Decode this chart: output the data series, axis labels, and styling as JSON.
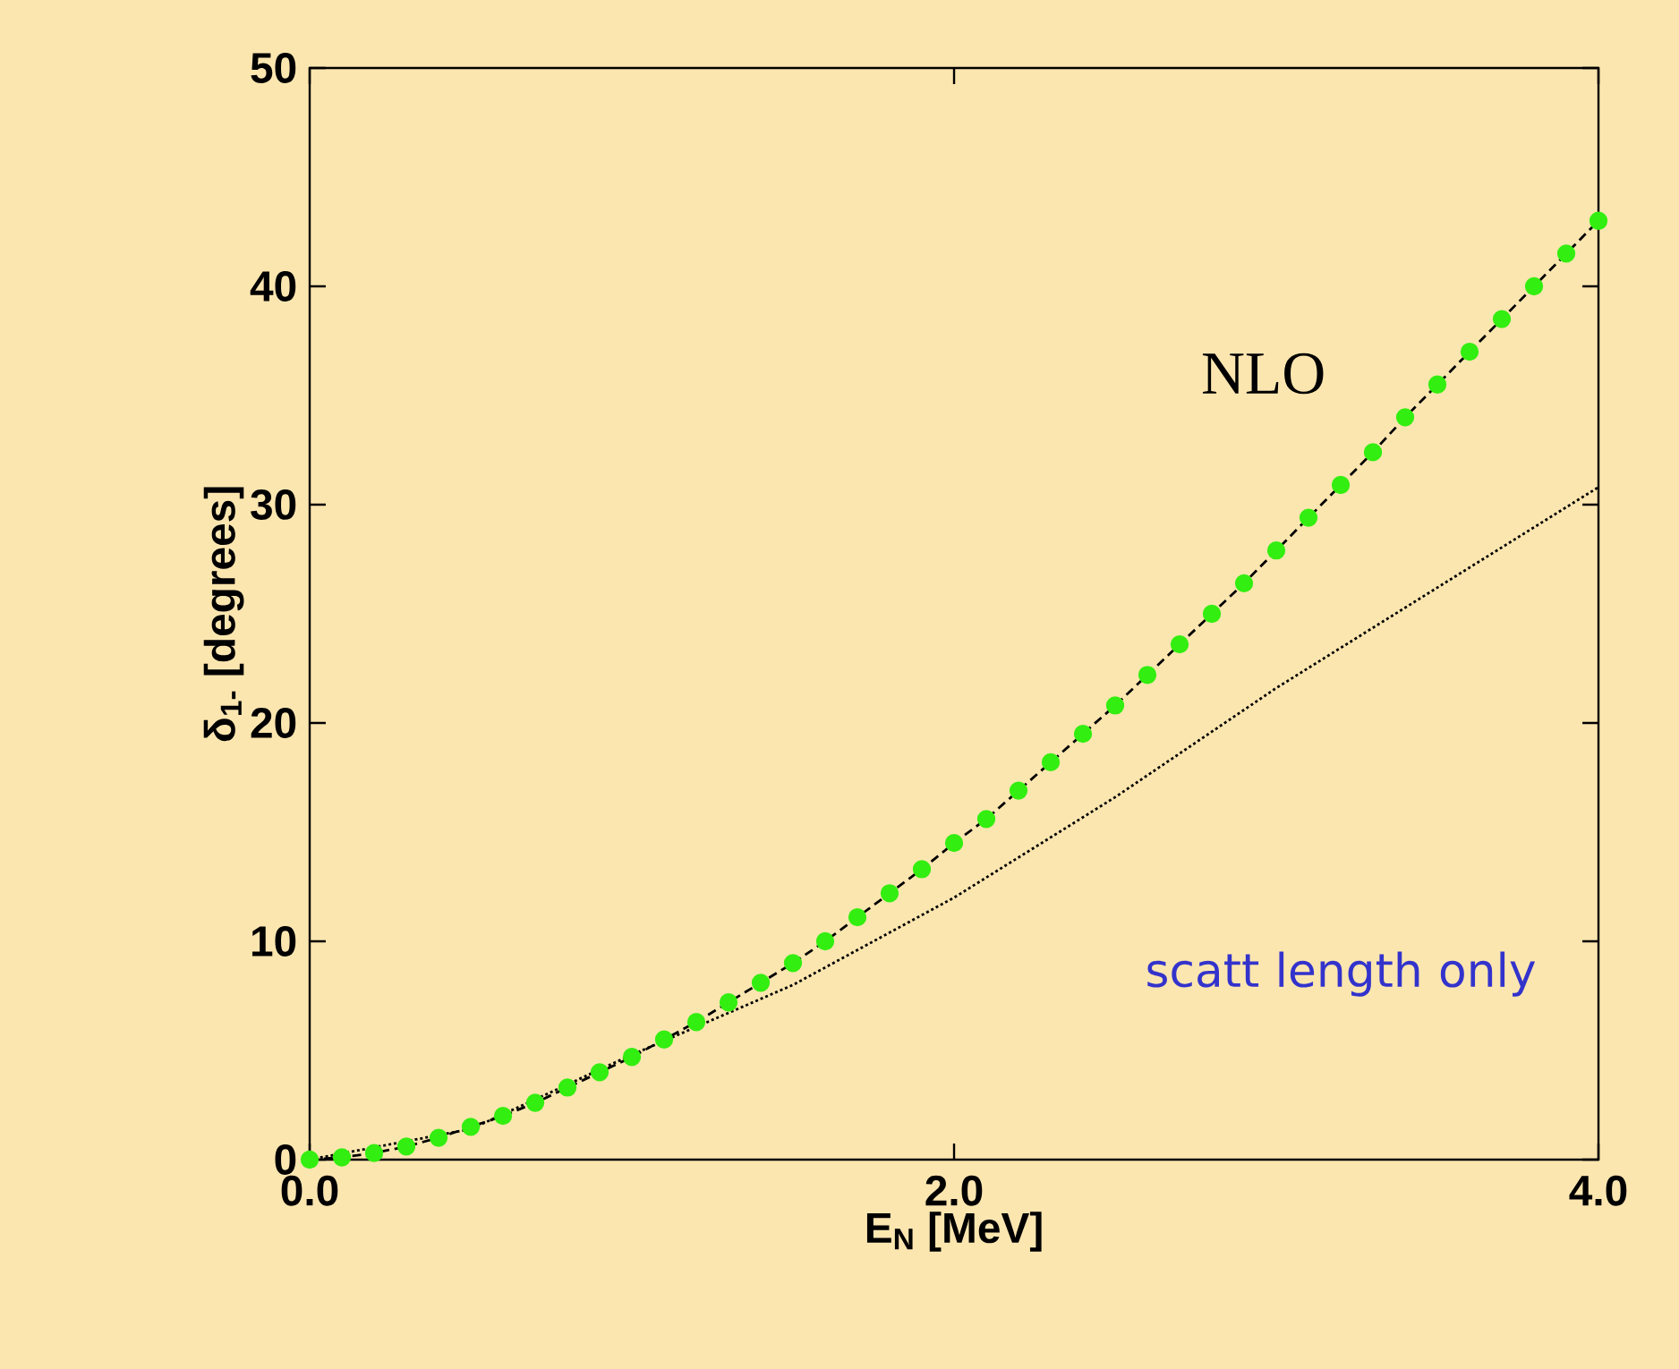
{
  "chart_data": {
    "type": "line",
    "xlabel": "E$_{N}$ [MeV]",
    "ylabel": "δ$_{1-}$ [degrees]",
    "x": [
      0,
      0.1,
      0.2,
      0.3,
      0.4,
      0.5,
      0.6,
      0.7,
      0.8,
      0.9,
      1.0,
      1.1,
      1.2,
      1.3,
      1.4,
      1.5,
      1.6,
      1.7,
      1.8,
      1.9,
      2.0,
      2.1,
      2.2,
      2.3,
      2.4,
      2.5,
      2.6,
      2.7,
      2.8,
      2.9,
      3.0,
      3.1,
      3.2,
      3.3,
      3.4,
      3.5,
      3.6,
      3.7,
      3.8,
      3.9,
      4.0
    ],
    "series": [
      {
        "color": "#000000",
        "line_style": "dashed",
        "marker": "none",
        "values": [
          0,
          0.1,
          0.3,
          0.6,
          1.0,
          1.5,
          2.0,
          2.6,
          3.3,
          4.0,
          4.7,
          5.5,
          6.3,
          7.2,
          8.1,
          9.0,
          10.0,
          11.1,
          12.2,
          13.3,
          14.5,
          15.6,
          16.9,
          18.2,
          19.5,
          20.8,
          22.2,
          23.6,
          25.0,
          26.4,
          27.9,
          29.4,
          30.9,
          32.4,
          34.0,
          35.5,
          37.0,
          38.5,
          40.0,
          41.5,
          43.0
        ]
      },
      {
        "type": "line",
        "color": "#000000",
        "line_style": "dotted",
        "marker": "none",
        "x": [
          0,
          0.5,
          1.0,
          1.5,
          2.0,
          2.5,
          3.0,
          3.5,
          4.0
        ],
        "values": [
          0,
          1.4,
          4.8,
          8.0,
          12.0,
          16.6,
          21.6,
          26.2,
          30.8
        ]
      },
      {
        "type": "scatter",
        "color": "#33ee11",
        "marker": "circle",
        "values": [
          0,
          0.1,
          0.3,
          0.6,
          1.0,
          1.5,
          2.0,
          2.6,
          3.3,
          4.0,
          4.7,
          5.5,
          6.3,
          7.2,
          8.1,
          9.0,
          10.0,
          11.1,
          12.2,
          13.3,
          14.5,
          15.6,
          16.9,
          18.2,
          19.5,
          20.8,
          22.2,
          23.6,
          25.0,
          26.4,
          27.9,
          29.4,
          30.9,
          32.4,
          34.0,
          35.5,
          37.0,
          38.5,
          40.0,
          41.5,
          43.0
        ]
      }
    ],
    "xlim": [
      0,
      4.0
    ],
    "ylim": [
      0,
      50
    ],
    "xticks": [
      {
        "value": 0,
        "label": "0.0"
      },
      {
        "value": 2.0,
        "label": "2.0"
      },
      {
        "value": 4.0,
        "label": "4.0"
      }
    ],
    "yticks": [
      0,
      10,
      20,
      30,
      40,
      50
    ],
    "grid": false,
    "annotations": [
      "NLO",
      "scatt length only"
    ]
  }
}
